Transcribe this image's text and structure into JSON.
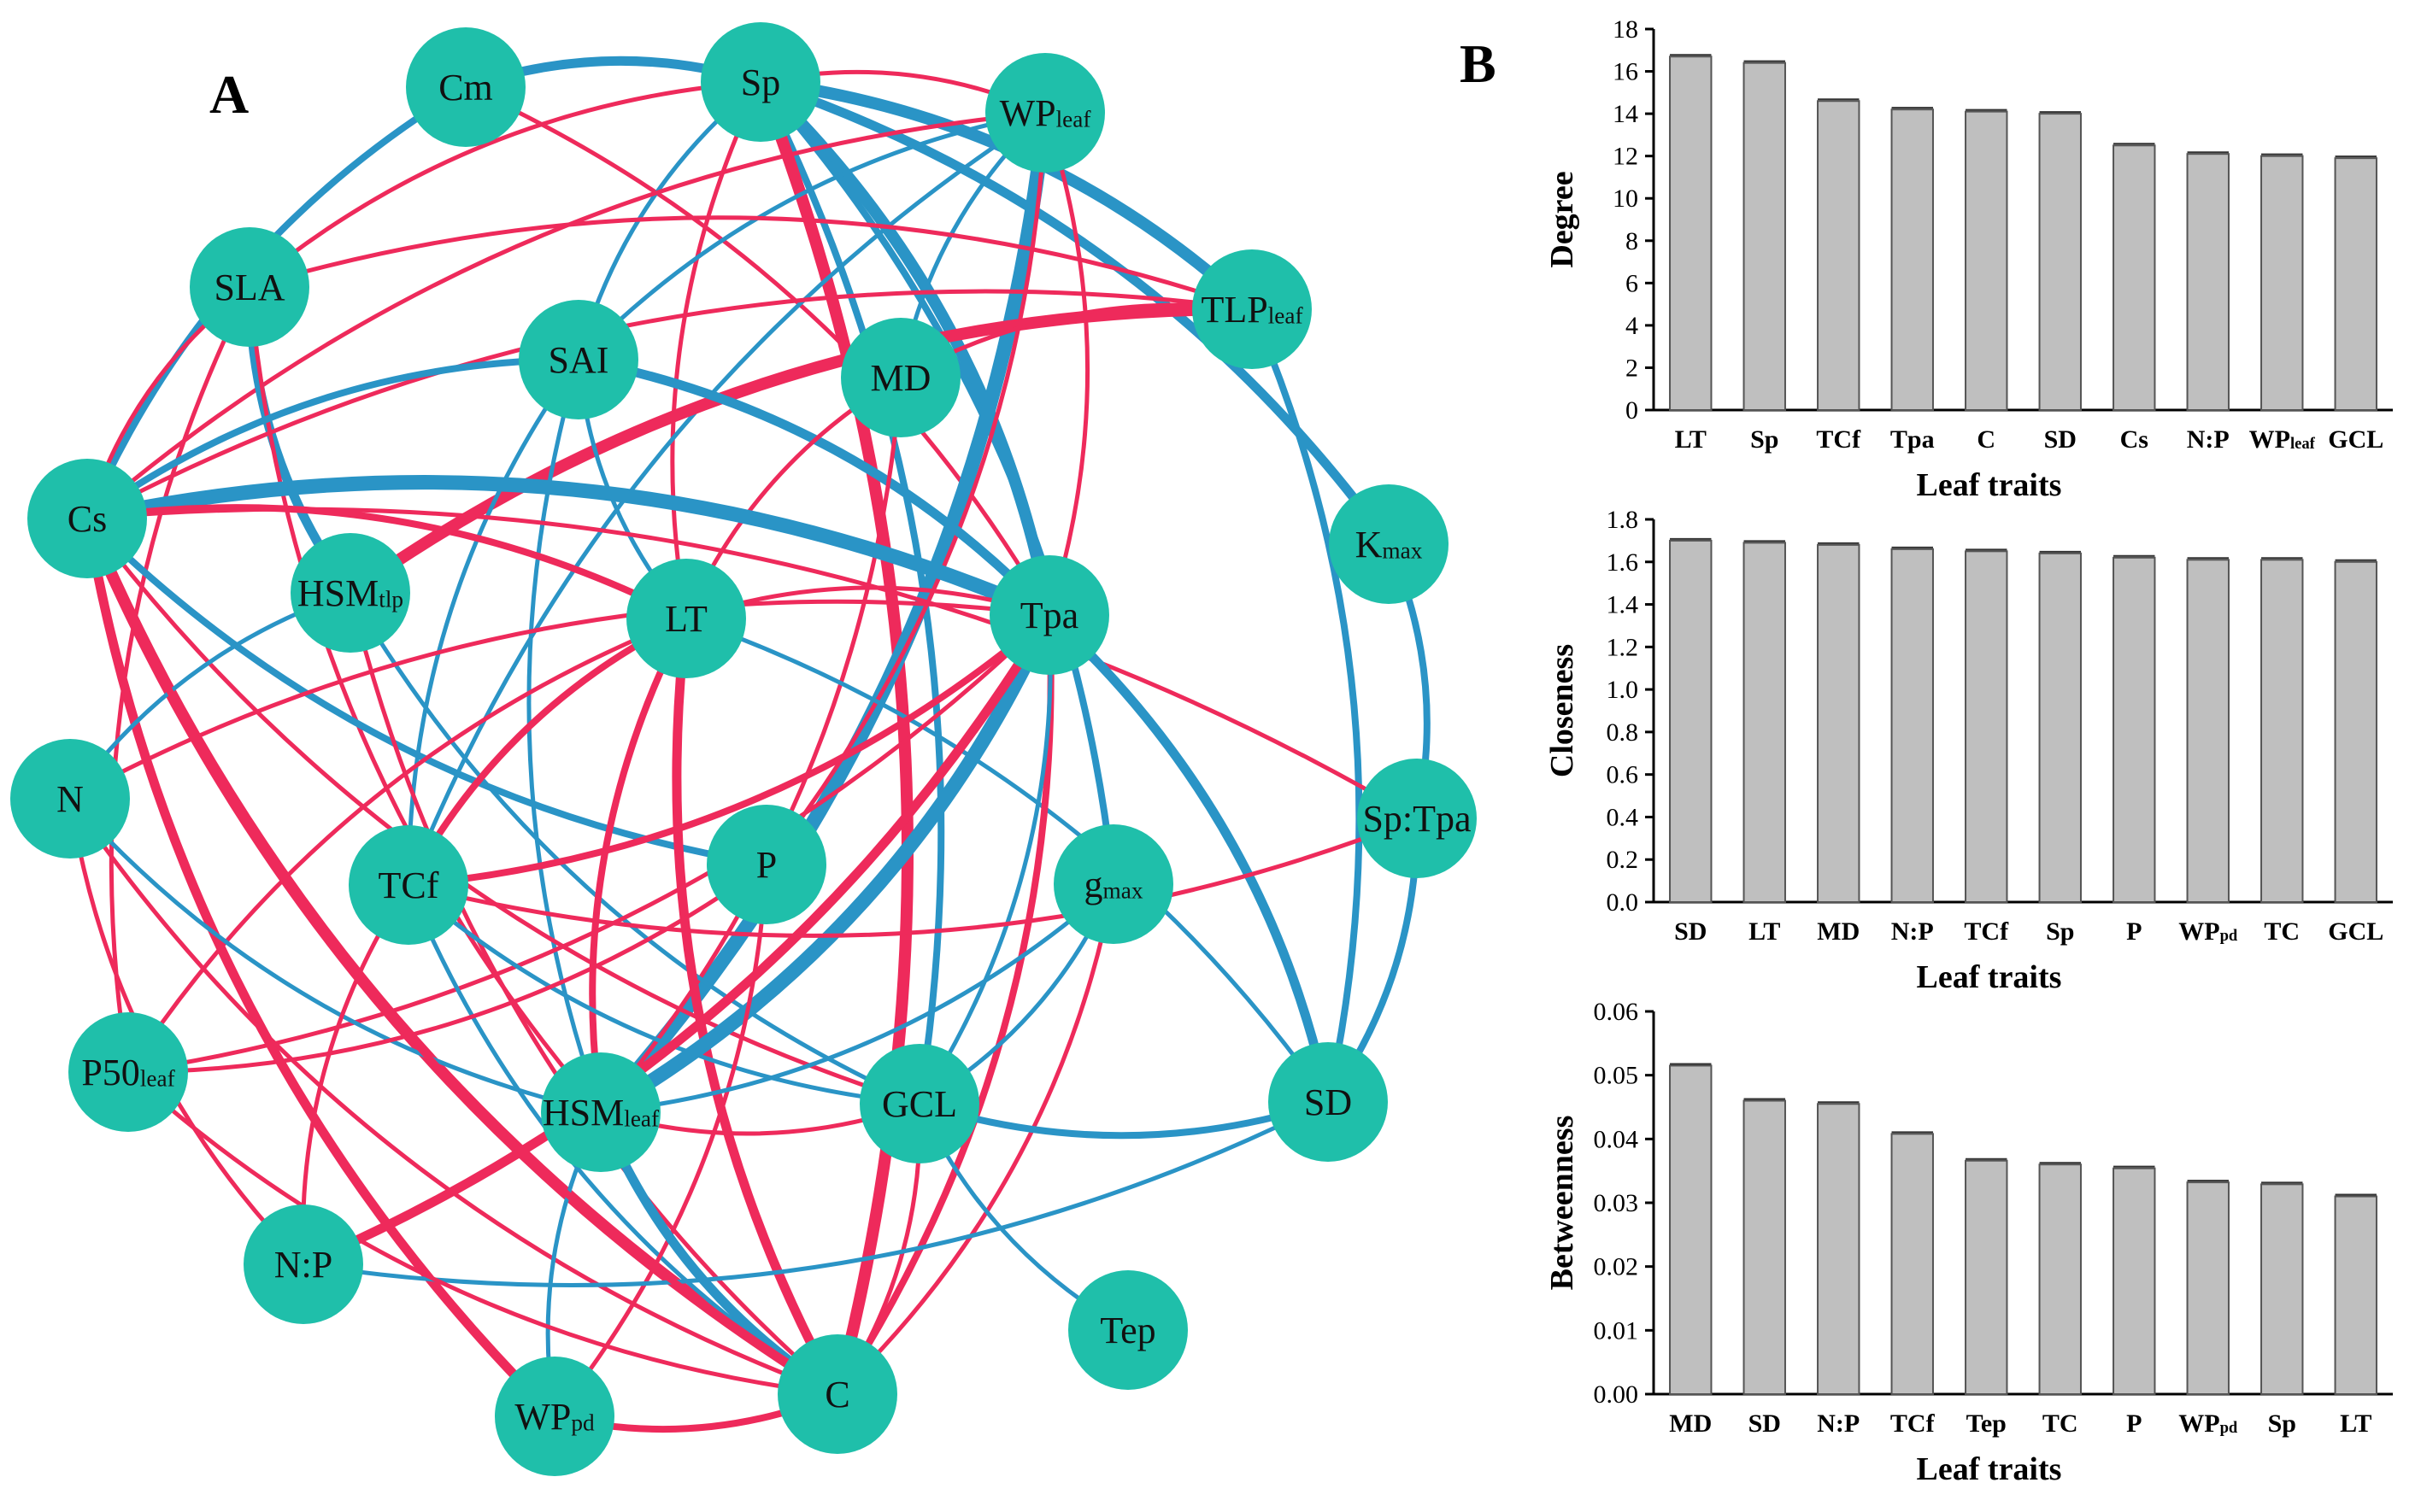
{
  "panel_a_letter": "A",
  "panel_b_letter": "B",
  "colors": {
    "node": "#1fbfaa",
    "positive": "#ee2a5b",
    "negative": "#2a94c6",
    "bar": "#bfbfbf"
  },
  "network": {
    "nodes": [
      {
        "id": "Cm",
        "label": "Cm",
        "sub": ""
      },
      {
        "id": "Sp",
        "label": "Sp",
        "sub": ""
      },
      {
        "id": "WPleaf",
        "label": "WP",
        "sub": "leaf"
      },
      {
        "id": "SLA",
        "label": "SLA",
        "sub": ""
      },
      {
        "id": "TLPleaf",
        "label": "TLP",
        "sub": "leaf"
      },
      {
        "id": "SAI",
        "label": "SAI",
        "sub": ""
      },
      {
        "id": "MD",
        "label": "MD",
        "sub": ""
      },
      {
        "id": "Cs",
        "label": "Cs",
        "sub": ""
      },
      {
        "id": "Kmax",
        "label": "K",
        "sub": "max"
      },
      {
        "id": "HSMtlp",
        "label": "HSM",
        "sub": "tlp"
      },
      {
        "id": "LT",
        "label": "LT",
        "sub": ""
      },
      {
        "id": "Tpa",
        "label": "Tpa",
        "sub": ""
      },
      {
        "id": "N",
        "label": "N",
        "sub": ""
      },
      {
        "id": "SpTpa",
        "label": "Sp:Tpa",
        "sub": ""
      },
      {
        "id": "TCf",
        "label": "TCf",
        "sub": ""
      },
      {
        "id": "P",
        "label": "P",
        "sub": ""
      },
      {
        "id": "gmax",
        "label": "g",
        "sub": "max"
      },
      {
        "id": "P50leaf",
        "label": "P50",
        "sub": "leaf"
      },
      {
        "id": "HSMleaf",
        "label": "HSM",
        "sub": "leaf"
      },
      {
        "id": "GCL",
        "label": "GCL",
        "sub": ""
      },
      {
        "id": "SD",
        "label": "SD",
        "sub": ""
      },
      {
        "id": "NP",
        "label": "N:P",
        "sub": ""
      },
      {
        "id": "Tep",
        "label": "Tep",
        "sub": ""
      },
      {
        "id": "WPpd",
        "label": "WP",
        "sub": "pd"
      },
      {
        "id": "C",
        "label": "C",
        "sub": ""
      }
    ],
    "edges": [
      {
        "a": "Cm",
        "b": "Sp",
        "sign": "neg",
        "weight": 3
      },
      {
        "a": "Cm",
        "b": "Cs",
        "sign": "neg",
        "weight": 2
      },
      {
        "a": "Cm",
        "b": "Tpa",
        "sign": "pos",
        "weight": 1
      },
      {
        "a": "Sp",
        "b": "WPleaf",
        "sign": "pos",
        "weight": 1
      },
      {
        "a": "Sp",
        "b": "TLPleaf",
        "sign": "neg",
        "weight": 4
      },
      {
        "a": "Sp",
        "b": "Kmax",
        "sign": "neg",
        "weight": 3
      },
      {
        "a": "Sp",
        "b": "SLA",
        "sign": "pos",
        "weight": 1
      },
      {
        "a": "Sp",
        "b": "SAI",
        "sign": "neg",
        "weight": 1
      },
      {
        "a": "Sp",
        "b": "LT",
        "sign": "pos",
        "weight": 1
      },
      {
        "a": "Sp",
        "b": "Tpa",
        "sign": "neg",
        "weight": 4
      },
      {
        "a": "Sp",
        "b": "GCL",
        "sign": "neg",
        "weight": 2
      },
      {
        "a": "Sp",
        "b": "C",
        "sign": "pos",
        "weight": 4
      },
      {
        "a": "Sp",
        "b": "gmax",
        "sign": "neg",
        "weight": 2
      },
      {
        "a": "WPleaf",
        "b": "HSMleaf",
        "sign": "neg",
        "weight": 5
      },
      {
        "a": "WPleaf",
        "b": "SAI",
        "sign": "neg",
        "weight": 1
      },
      {
        "a": "WPleaf",
        "b": "Cs",
        "sign": "pos",
        "weight": 1
      },
      {
        "a": "WPleaf",
        "b": "P",
        "sign": "pos",
        "weight": 1
      },
      {
        "a": "WPleaf",
        "b": "MD",
        "sign": "neg",
        "weight": 1
      },
      {
        "a": "WPleaf",
        "b": "Tpa",
        "sign": "pos",
        "weight": 1
      },
      {
        "a": "WPleaf",
        "b": "TCf",
        "sign": "neg",
        "weight": 1
      },
      {
        "a": "SLA",
        "b": "HSMtlp",
        "sign": "neg",
        "weight": 3
      },
      {
        "a": "SLA",
        "b": "Cs",
        "sign": "pos",
        "weight": 1
      },
      {
        "a": "SLA",
        "b": "P50leaf",
        "sign": "pos",
        "weight": 1
      },
      {
        "a": "SLA",
        "b": "TLPleaf",
        "sign": "pos",
        "weight": 1
      },
      {
        "a": "SLA",
        "b": "HSMleaf",
        "sign": "pos",
        "weight": 1
      },
      {
        "a": "TLPleaf",
        "b": "HSMtlp",
        "sign": "pos",
        "weight": 4
      },
      {
        "a": "TLPleaf",
        "b": "Cs",
        "sign": "pos",
        "weight": 1
      },
      {
        "a": "TLPleaf",
        "b": "SD",
        "sign": "neg",
        "weight": 2
      },
      {
        "a": "TLPleaf",
        "b": "MD",
        "sign": "pos",
        "weight": 1
      },
      {
        "a": "SAI",
        "b": "Cs",
        "sign": "neg",
        "weight": 2
      },
      {
        "a": "SAI",
        "b": "Tpa",
        "sign": "neg",
        "weight": 3
      },
      {
        "a": "SAI",
        "b": "LT",
        "sign": "neg",
        "weight": 1
      },
      {
        "a": "SAI",
        "b": "TCf",
        "sign": "neg",
        "weight": 1
      },
      {
        "a": "SAI",
        "b": "HSMleaf",
        "sign": "neg",
        "weight": 1
      },
      {
        "a": "MD",
        "b": "HSMleaf",
        "sign": "pos",
        "weight": 1
      },
      {
        "a": "MD",
        "b": "LT",
        "sign": "pos",
        "weight": 1
      },
      {
        "a": "Cs",
        "b": "Tpa",
        "sign": "neg",
        "weight": 5
      },
      {
        "a": "Cs",
        "b": "LT",
        "sign": "pos",
        "weight": 2
      },
      {
        "a": "Cs",
        "b": "C",
        "sign": "pos",
        "weight": 4
      },
      {
        "a": "Cs",
        "b": "P",
        "sign": "neg",
        "weight": 2
      },
      {
        "a": "Cs",
        "b": "WPpd",
        "sign": "pos",
        "weight": 3
      },
      {
        "a": "Cs",
        "b": "GCL",
        "sign": "pos",
        "weight": 1
      },
      {
        "a": "Cs",
        "b": "SpTpa",
        "sign": "pos",
        "weight": 1
      },
      {
        "a": "HSMtlp",
        "b": "N",
        "sign": "neg",
        "weight": 1
      },
      {
        "a": "HSMtlp",
        "b": "GCL",
        "sign": "neg",
        "weight": 1
      },
      {
        "a": "HSMtlp",
        "b": "C",
        "sign": "pos",
        "weight": 1
      },
      {
        "a": "LT",
        "b": "Tpa",
        "sign": "pos",
        "weight": 1
      },
      {
        "a": "LT",
        "b": "TCf",
        "sign": "pos",
        "weight": 2
      },
      {
        "a": "LT",
        "b": "HSMleaf",
        "sign": "pos",
        "weight": 2
      },
      {
        "a": "LT",
        "b": "C",
        "sign": "pos",
        "weight": 3
      },
      {
        "a": "LT",
        "b": "SD",
        "sign": "neg",
        "weight": 1
      },
      {
        "a": "LT",
        "b": "P50leaf",
        "sign": "pos",
        "weight": 1
      },
      {
        "a": "Tpa",
        "b": "HSMleaf",
        "sign": "neg",
        "weight": 5
      },
      {
        "a": "Tpa",
        "b": "TCf",
        "sign": "pos",
        "weight": 2
      },
      {
        "a": "Tpa",
        "b": "C",
        "sign": "pos",
        "weight": 2
      },
      {
        "a": "Tpa",
        "b": "SD",
        "sign": "neg",
        "weight": 3
      },
      {
        "a": "Tpa",
        "b": "P50leaf",
        "sign": "pos",
        "weight": 1
      },
      {
        "a": "Tpa",
        "b": "GCL",
        "sign": "neg",
        "weight": 1
      },
      {
        "a": "N",
        "b": "HSMleaf",
        "sign": "neg",
        "weight": 1
      },
      {
        "a": "N",
        "b": "Tpa",
        "sign": "pos",
        "weight": 1
      },
      {
        "a": "N",
        "b": "C",
        "sign": "pos",
        "weight": 1
      },
      {
        "a": "SpTpa",
        "b": "Kmax",
        "sign": "neg",
        "weight": 2
      },
      {
        "a": "SpTpa",
        "b": "SD",
        "sign": "neg",
        "weight": 2
      },
      {
        "a": "SpTpa",
        "b": "TCf",
        "sign": "pos",
        "weight": 1
      },
      {
        "a": "TCf",
        "b": "NP",
        "sign": "pos",
        "weight": 1
      },
      {
        "a": "TCf",
        "b": "C",
        "sign": "neg",
        "weight": 1
      },
      {
        "a": "TCf",
        "b": "GCL",
        "sign": "neg",
        "weight": 1
      },
      {
        "a": "P",
        "b": "WPpd",
        "sign": "pos",
        "weight": 1
      },
      {
        "a": "P",
        "b": "P50leaf",
        "sign": "pos",
        "weight": 1
      },
      {
        "a": "gmax",
        "b": "GCL",
        "sign": "neg",
        "weight": 1
      },
      {
        "a": "gmax",
        "b": "C",
        "sign": "pos",
        "weight": 1
      },
      {
        "a": "gmax",
        "b": "HSMleaf",
        "sign": "neg",
        "weight": 1
      },
      {
        "a": "HSMleaf",
        "b": "GCL",
        "sign": "pos",
        "weight": 1
      },
      {
        "a": "HSMleaf",
        "b": "C",
        "sign": "neg",
        "weight": 3
      },
      {
        "a": "HSMleaf",
        "b": "WPpd",
        "sign": "neg",
        "weight": 1
      },
      {
        "a": "GCL",
        "b": "SD",
        "sign": "neg",
        "weight": 2
      },
      {
        "a": "GCL",
        "b": "Tep",
        "sign": "neg",
        "weight": 1
      },
      {
        "a": "GCL",
        "b": "C",
        "sign": "pos",
        "weight": 1
      },
      {
        "a": "SD",
        "b": "NP",
        "sign": "neg",
        "weight": 1
      },
      {
        "a": "NP",
        "b": "Tpa",
        "sign": "pos",
        "weight": 3
      },
      {
        "a": "NP",
        "b": "N",
        "sign": "pos",
        "weight": 1
      },
      {
        "a": "WPpd",
        "b": "C",
        "sign": "pos",
        "weight": 2
      },
      {
        "a": "C",
        "b": "P50leaf",
        "sign": "pos",
        "weight": 1
      },
      {
        "a": "C",
        "b": "Cs",
        "sign": "pos",
        "weight": 2
      }
    ]
  },
  "chart_data": [
    {
      "type": "bar",
      "xlabel": "Leaf traits",
      "ylabel": "Degree",
      "categories": [
        "LT",
        "Sp",
        "TCf",
        "Tpa",
        "C",
        "SD",
        "Cs",
        "N:P",
        "WPleaf",
        "GCL"
      ],
      "category_labels": [
        [
          "LT",
          ""
        ],
        [
          "Sp",
          ""
        ],
        [
          "TCf",
          ""
        ],
        [
          "Tpa",
          ""
        ],
        [
          "C",
          ""
        ],
        [
          "SD",
          ""
        ],
        [
          "Cs",
          ""
        ],
        [
          "N:P",
          ""
        ],
        [
          "WP",
          "leaf"
        ],
        [
          "GCL",
          ""
        ]
      ],
      "values": [
        16.7,
        16.4,
        14.6,
        14.2,
        14.1,
        14.0,
        12.5,
        12.1,
        12.0,
        11.9
      ],
      "ylim": [
        0,
        18
      ],
      "yticks": [
        "0",
        "2",
        "4",
        "6",
        "8",
        "10",
        "12",
        "14",
        "16",
        "18"
      ]
    },
    {
      "type": "bar",
      "xlabel": "Leaf traits",
      "ylabel": "Closeness",
      "categories": [
        "SD",
        "LT",
        "MD",
        "N:P",
        "TCf",
        "Sp",
        "P",
        "WPpd",
        "TC",
        "GCL"
      ],
      "category_labels": [
        [
          "SD",
          ""
        ],
        [
          "LT",
          ""
        ],
        [
          "MD",
          ""
        ],
        [
          "N:P",
          ""
        ],
        [
          "TCf",
          ""
        ],
        [
          "Sp",
          ""
        ],
        [
          "P",
          ""
        ],
        [
          "WP",
          "pd"
        ],
        [
          "TC",
          ""
        ],
        [
          "GCL",
          ""
        ]
      ],
      "values": [
        1.7,
        1.69,
        1.68,
        1.66,
        1.65,
        1.64,
        1.62,
        1.61,
        1.61,
        1.6
      ],
      "ylim": [
        0,
        1.8
      ],
      "yticks": [
        "0.0",
        "0.2",
        "0.4",
        "0.6",
        "0.8",
        "1.0",
        "1.2",
        "1.4",
        "1.6",
        "1.8"
      ]
    },
    {
      "type": "bar",
      "xlabel": "Leaf traits",
      "ylabel": "Betweenness",
      "categories": [
        "MD",
        "SD",
        "N:P",
        "TCf",
        "Tep",
        "TC",
        "P",
        "WPpd",
        "Sp",
        "LT"
      ],
      "category_labels": [
        [
          "MD",
          ""
        ],
        [
          "SD",
          ""
        ],
        [
          "N:P",
          ""
        ],
        [
          "TCf",
          ""
        ],
        [
          "Tep",
          ""
        ],
        [
          "TC",
          ""
        ],
        [
          "P",
          ""
        ],
        [
          "WP",
          "pd"
        ],
        [
          "Sp",
          ""
        ],
        [
          "LT",
          ""
        ]
      ],
      "values": [
        0.0515,
        0.046,
        0.0455,
        0.0408,
        0.0366,
        0.036,
        0.0354,
        0.0332,
        0.0329,
        0.031
      ],
      "ylim": [
        0,
        0.06
      ],
      "yticks": [
        "0.00",
        "0.01",
        "0.02",
        "0.03",
        "0.04",
        "0.05",
        "0.06"
      ]
    }
  ]
}
